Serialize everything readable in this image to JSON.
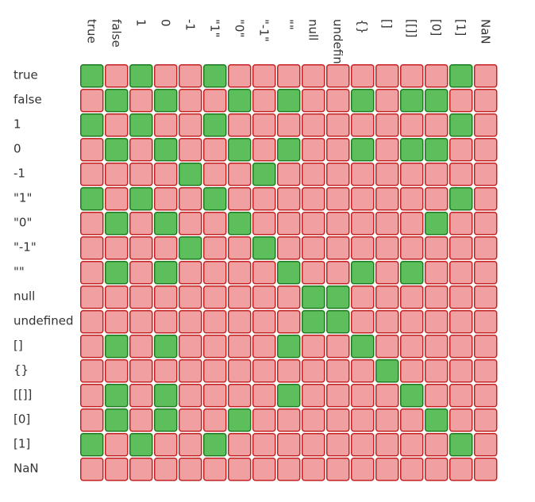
{
  "chart_data": {
    "type": "heatmap",
    "title": "",
    "xlabel": "",
    "ylabel": "",
    "rows": [
      "true",
      "false",
      "1",
      "0",
      "-1",
      "\"1\"",
      "\"0\"",
      "\"-1\"",
      "\"\"",
      "null",
      "undefined",
      "[]",
      "{}",
      "[[]]",
      "[0]",
      "[1]",
      "NaN"
    ],
    "columns": [
      "true",
      "false",
      "1",
      "0",
      "-1",
      "\"1\"",
      "\"0\"",
      "\"-1\"",
      "\"\"",
      "null",
      "undefined",
      "{}",
      "[]",
      "[[]]",
      "[0]",
      "[1]",
      "NaN"
    ],
    "values": [
      [
        1,
        0,
        1,
        0,
        0,
        1,
        0,
        0,
        0,
        0,
        0,
        0,
        0,
        0,
        0,
        1,
        0
      ],
      [
        0,
        1,
        0,
        1,
        0,
        0,
        1,
        0,
        1,
        0,
        0,
        1,
        0,
        1,
        1,
        0,
        0
      ],
      [
        1,
        0,
        1,
        0,
        0,
        1,
        0,
        0,
        0,
        0,
        0,
        0,
        0,
        0,
        0,
        1,
        0
      ],
      [
        0,
        1,
        0,
        1,
        0,
        0,
        1,
        0,
        1,
        0,
        0,
        1,
        0,
        1,
        1,
        0,
        0
      ],
      [
        0,
        0,
        0,
        0,
        1,
        0,
        0,
        1,
        0,
        0,
        0,
        0,
        0,
        0,
        0,
        0,
        0
      ],
      [
        1,
        0,
        1,
        0,
        0,
        1,
        0,
        0,
        0,
        0,
        0,
        0,
        0,
        0,
        0,
        1,
        0
      ],
      [
        0,
        1,
        0,
        1,
        0,
        0,
        1,
        0,
        0,
        0,
        0,
        0,
        0,
        0,
        1,
        0,
        0
      ],
      [
        0,
        0,
        0,
        0,
        1,
        0,
        0,
        1,
        0,
        0,
        0,
        0,
        0,
        0,
        0,
        0,
        0
      ],
      [
        0,
        1,
        0,
        1,
        0,
        0,
        0,
        0,
        1,
        0,
        0,
        1,
        0,
        1,
        0,
        0,
        0
      ],
      [
        0,
        0,
        0,
        0,
        0,
        0,
        0,
        0,
        0,
        1,
        1,
        0,
        0,
        0,
        0,
        0,
        0
      ],
      [
        0,
        0,
        0,
        0,
        0,
        0,
        0,
        0,
        0,
        1,
        1,
        0,
        0,
        0,
        0,
        0,
        0
      ],
      [
        0,
        1,
        0,
        1,
        0,
        0,
        0,
        0,
        1,
        0,
        0,
        1,
        0,
        0,
        0,
        0,
        0
      ],
      [
        0,
        0,
        0,
        0,
        0,
        0,
        0,
        0,
        0,
        0,
        0,
        0,
        1,
        0,
        0,
        0,
        0
      ],
      [
        0,
        1,
        0,
        1,
        0,
        0,
        0,
        0,
        1,
        0,
        0,
        0,
        0,
        1,
        0,
        0,
        0
      ],
      [
        0,
        1,
        0,
        1,
        0,
        0,
        1,
        0,
        0,
        0,
        0,
        0,
        0,
        0,
        1,
        0,
        0
      ],
      [
        1,
        0,
        1,
        0,
        0,
        1,
        0,
        0,
        0,
        0,
        0,
        0,
        0,
        0,
        0,
        1,
        0
      ],
      [
        0,
        0,
        0,
        0,
        0,
        0,
        0,
        0,
        0,
        0,
        0,
        0,
        0,
        0,
        0,
        0,
        0
      ]
    ],
    "colors": {
      "true_fill": "#5cbf5c",
      "true_border": "#1e7a1e",
      "false_fill": "#f0a0a0",
      "false_border": "#c42222",
      "label_text": "#333333"
    },
    "grid": false,
    "legend": "none"
  }
}
